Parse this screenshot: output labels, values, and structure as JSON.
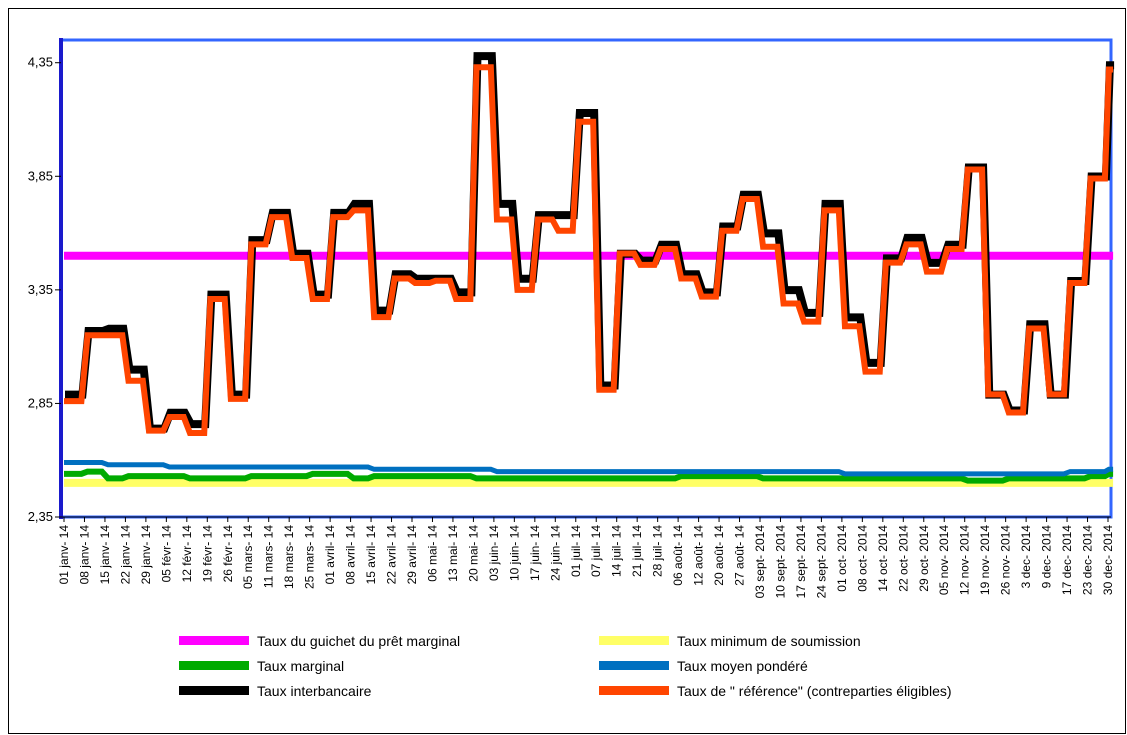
{
  "chart_data": {
    "type": "line",
    "title": "",
    "xlabel": "",
    "ylabel": "",
    "ylim": [
      2.35,
      4.45
    ],
    "yticks": [
      "2,35",
      "2,85",
      "3,35",
      "3,85",
      "4,35"
    ],
    "ytick_values": [
      2.35,
      2.85,
      3.35,
      3.85,
      4.35
    ],
    "grid": false,
    "legend_position": "bottom",
    "categories": [
      "01 janv- 14",
      "08 janv- 14",
      "15 janv- 14",
      "22 janv- 14",
      "29 janv- 14",
      "05 févr- 14",
      "12 févr- 14",
      "19 févr- 14",
      "26 févr- 14",
      "05 mars- 14",
      "11 mars- 14",
      "18 mars- 14",
      "25 mars- 14",
      "01 avril- 14",
      "08 avril- 14",
      "15 avril- 14",
      "22 avril- 14",
      "29 avril- 14",
      "06 mai- 14",
      "13 mai- 14",
      "20 mai- 14",
      "03 juin- 14",
      "10 juin- 14",
      "17 juin- 14",
      "24 juin- 14",
      "01 juil- 14",
      "07 juil- 14",
      "14 juil- 14",
      "21 juil- 14",
      "28 juil- 14",
      "06 août- 14",
      "12 août- 14",
      "20 août- 14",
      "27 août- 14",
      "03 sept- 2014",
      "10 sept- 2014",
      "17 sept- 2014",
      "24 sept- 2014",
      "01 oct- 2014",
      "08 oct- 2014",
      "14 oct- 2014",
      "22 oct- 2014",
      "29 oct- 2014",
      "05 nov- 2014",
      "12 nov- 2014",
      "19 nov- 2014",
      "26 nov- 2014",
      "3 dec- 2014",
      "9 dec- 2014",
      "17 dec- 2014",
      "23 dec- 2014",
      "30 dec- 2014"
    ],
    "series": [
      {
        "name": "Taux du guichet du prêt marginal",
        "color": "#ff00ff",
        "values": [
          3.5,
          3.5,
          3.5,
          3.5,
          3.5,
          3.5,
          3.5,
          3.5,
          3.5,
          3.5,
          3.5,
          3.5,
          3.5,
          3.5,
          3.5,
          3.5,
          3.5,
          3.5,
          3.5,
          3.5,
          3.5,
          3.5,
          3.5,
          3.5,
          3.5,
          3.5,
          3.5,
          3.5,
          3.5,
          3.5,
          3.5,
          3.5,
          3.5,
          3.5,
          3.5,
          3.5,
          3.5,
          3.5,
          3.5,
          3.5,
          3.5,
          3.5,
          3.5,
          3.5,
          3.5,
          3.5,
          3.5,
          3.5,
          3.5,
          3.5,
          3.5,
          3.5
        ]
      },
      {
        "name": "Taux minimum de soumission",
        "color": "#ffff66",
        "values": [
          2.5,
          2.5,
          2.5,
          2.5,
          2.5,
          2.5,
          2.5,
          2.5,
          2.5,
          2.5,
          2.5,
          2.5,
          2.5,
          2.5,
          2.5,
          2.5,
          2.5,
          2.5,
          2.5,
          2.5,
          2.5,
          2.5,
          2.5,
          2.5,
          2.5,
          2.5,
          2.5,
          2.5,
          2.5,
          2.5,
          2.5,
          2.5,
          2.5,
          2.5,
          2.5,
          2.5,
          2.5,
          2.5,
          2.5,
          2.5,
          2.5,
          2.5,
          2.5,
          2.5,
          2.5,
          2.5,
          2.5,
          2.5,
          2.5,
          2.5,
          2.5,
          2.5
        ]
      },
      {
        "name": "Taux marginal",
        "color": "#00aa00",
        "values": [
          2.54,
          2.55,
          2.52,
          2.53,
          2.53,
          2.53,
          2.52,
          2.52,
          2.52,
          2.53,
          2.53,
          2.53,
          2.54,
          2.54,
          2.52,
          2.53,
          2.53,
          2.53,
          2.53,
          2.53,
          2.52,
          2.52,
          2.52,
          2.52,
          2.52,
          2.52,
          2.52,
          2.52,
          2.52,
          2.52,
          2.53,
          2.53,
          2.53,
          2.53,
          2.52,
          2.52,
          2.52,
          2.52,
          2.52,
          2.52,
          2.52,
          2.52,
          2.52,
          2.52,
          2.51,
          2.51,
          2.52,
          2.52,
          2.52,
          2.52,
          2.53,
          2.54
        ]
      },
      {
        "name": "Taux moyen pondéré",
        "color": "#0070c0",
        "values": [
          2.59,
          2.59,
          2.58,
          2.58,
          2.58,
          2.57,
          2.57,
          2.57,
          2.57,
          2.57,
          2.57,
          2.57,
          2.57,
          2.57,
          2.57,
          2.56,
          2.56,
          2.56,
          2.56,
          2.56,
          2.56,
          2.55,
          2.55,
          2.55,
          2.55,
          2.55,
          2.55,
          2.55,
          2.55,
          2.55,
          2.55,
          2.55,
          2.55,
          2.55,
          2.55,
          2.55,
          2.55,
          2.55,
          2.54,
          2.54,
          2.54,
          2.54,
          2.54,
          2.54,
          2.54,
          2.54,
          2.54,
          2.54,
          2.54,
          2.55,
          2.55,
          2.56
        ]
      },
      {
        "name": "Taux interbancaire",
        "color": "#000000",
        "values": [
          2.88,
          3.16,
          3.17,
          2.99,
          2.73,
          2.8,
          2.75,
          3.32,
          2.88,
          3.56,
          3.68,
          3.5,
          3.32,
          3.68,
          3.72,
          3.25,
          3.41,
          3.39,
          3.39,
          3.33,
          4.37,
          3.72,
          3.39,
          3.67,
          3.67,
          4.12,
          2.92,
          3.5,
          3.47,
          3.54,
          3.41,
          3.33,
          3.62,
          3.76,
          3.59,
          3.34,
          3.24,
          3.72,
          3.22,
          3.02,
          3.48,
          3.57,
          3.46,
          3.54,
          3.88,
          2.88,
          2.81,
          3.19,
          2.88,
          3.38,
          3.84,
          4.33
        ]
      },
      {
        "name": "Taux de \" référence\" (contreparties éligibles)",
        "color": "#ff4500",
        "values": [
          2.86,
          3.15,
          3.15,
          2.95,
          2.73,
          2.79,
          2.72,
          3.31,
          2.87,
          3.55,
          3.67,
          3.49,
          3.31,
          3.67,
          3.7,
          3.23,
          3.4,
          3.38,
          3.39,
          3.31,
          4.33,
          3.66,
          3.35,
          3.66,
          3.61,
          4.09,
          2.91,
          3.51,
          3.46,
          3.53,
          3.4,
          3.32,
          3.61,
          3.75,
          3.54,
          3.29,
          3.21,
          3.7,
          3.19,
          2.99,
          3.47,
          3.55,
          3.43,
          3.53,
          3.88,
          2.89,
          2.81,
          3.18,
          2.89,
          3.38,
          3.84,
          4.32
        ]
      }
    ]
  }
}
